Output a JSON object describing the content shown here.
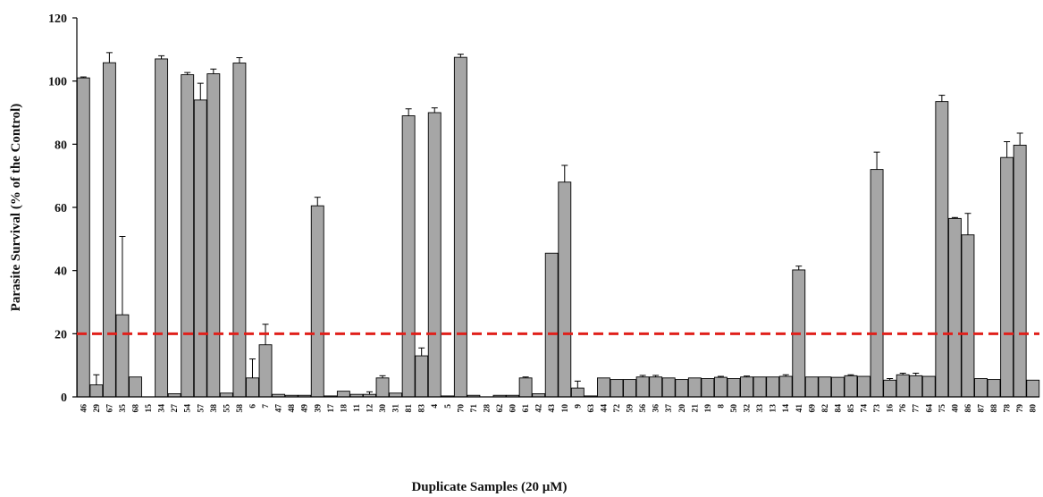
{
  "chart_data": {
    "type": "bar",
    "xlabel": "Duplicate Samples (20 µM)",
    "ylabel": "Parasite Survival (% of the Control)",
    "ylim": [
      0,
      120
    ],
    "yticks": [
      0,
      20,
      40,
      60,
      80,
      100,
      120
    ],
    "grid": false,
    "legend": "none",
    "threshold": 20,
    "colors": {
      "bar": "#a6a6a6",
      "bar_edge": "#000000",
      "threshold": "#e0201b"
    },
    "categories": [
      "46",
      "29",
      "67",
      "35",
      "68",
      "15",
      "34",
      "27",
      "54",
      "57",
      "38",
      "55",
      "58",
      "6",
      "7",
      "47",
      "48",
      "49",
      "39",
      "17",
      "18",
      "11",
      "12",
      "30",
      "31",
      "81",
      "83",
      "4",
      "5",
      "70",
      "71",
      "28",
      "62",
      "60",
      "61",
      "42",
      "43",
      "10",
      "9",
      "63",
      "44",
      "72",
      "59",
      "56",
      "36",
      "37",
      "20",
      "21",
      "19",
      "8",
      "50",
      "32",
      "33",
      "13",
      "14",
      "41",
      "69",
      "82",
      "84",
      "85",
      "74",
      "73",
      "16",
      "76",
      "77",
      "64",
      "75",
      "40",
      "86",
      "87",
      "88",
      "78",
      "79",
      "80"
    ],
    "values": [
      101,
      3.8,
      105.8,
      26,
      6.3,
      0,
      107,
      1,
      102,
      94,
      102.3,
      1.2,
      105.7,
      6,
      16.5,
      0.8,
      0.5,
      0.5,
      60.5,
      0.3,
      1.8,
      0.8,
      0.8,
      6,
      1.2,
      89,
      13,
      90,
      0.3,
      107.5,
      0.5,
      0,
      0.5,
      0.5,
      6,
      1,
      45.5,
      68,
      2.8,
      0.3,
      6,
      5.5,
      5.5,
      6.3,
      6.3,
      6,
      5.5,
      6,
      5.8,
      6.2,
      5.8,
      6.3,
      6.3,
      6.3,
      6.5,
      40.2,
      6.3,
      6.3,
      6.2,
      6.7,
      6.5,
      72,
      5.3,
      7,
      6.7,
      6.5,
      93.5,
      56.5,
      51.3,
      5.8,
      5.5,
      75.8,
      79.7,
      5.3
    ],
    "errors": [
      0.3,
      3.2,
      3.2,
      24.8,
      0,
      0,
      1,
      0,
      0.7,
      5.3,
      1.5,
      0,
      1.7,
      6,
      6.5,
      0,
      0,
      0,
      2.7,
      0,
      0,
      0,
      0.8,
      0.7,
      0,
      2.2,
      2.5,
      1.5,
      0,
      1,
      0,
      0,
      0,
      0,
      0.3,
      0,
      0,
      5.3,
      2.2,
      0,
      0,
      0,
      0,
      0.5,
      0.5,
      0,
      0,
      0,
      0,
      0.3,
      0,
      0.3,
      0,
      0,
      0.5,
      1.2,
      0,
      0,
      0,
      0.3,
      0,
      5.5,
      0.5,
      0.5,
      0.8,
      0,
      2,
      0.3,
      6.8,
      0,
      0,
      5,
      3.8,
      0
    ]
  }
}
